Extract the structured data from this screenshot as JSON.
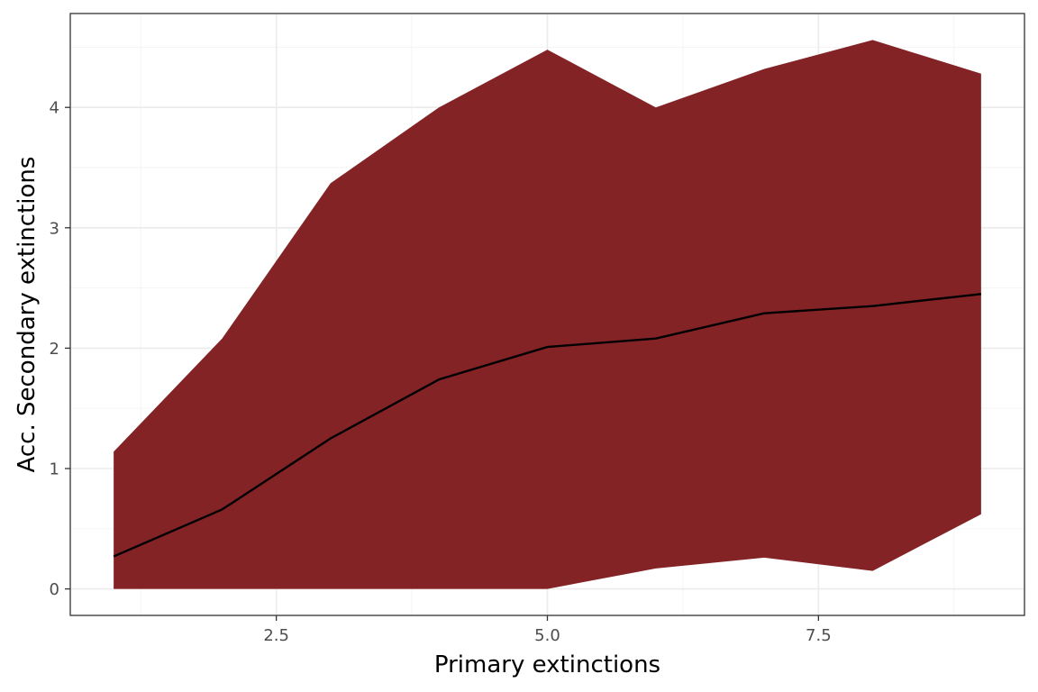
{
  "chart_data": {
    "type": "area",
    "title": "",
    "xlabel": "Primary extinctions",
    "ylabel": "Acc. Secondary extinctions",
    "xlim": [
      0.6,
      9.4
    ],
    "ylim": [
      -0.22,
      4.78
    ],
    "x_ticks": [
      2.5,
      5.0,
      7.5
    ],
    "x_tick_labels": [
      "2.5",
      "5.0",
      "7.5"
    ],
    "y_ticks": [
      0,
      1,
      2,
      3,
      4
    ],
    "y_tick_labels": [
      "0",
      "1",
      "2",
      "3",
      "4"
    ],
    "grid": true,
    "legend": "none",
    "x": [
      1,
      2,
      3,
      4,
      5,
      6,
      7,
      8,
      9
    ],
    "series": [
      {
        "type": "ribbon",
        "lower": [
          0,
          0,
          0,
          0,
          0,
          0.17,
          0.26,
          0.15,
          0.62
        ],
        "upper": [
          1.14,
          2.08,
          3.37,
          4.0,
          4.48,
          4.0,
          4.32,
          4.56,
          4.28
        ],
        "color": "#832325"
      },
      {
        "type": "line",
        "values": [
          0.27,
          0.66,
          1.25,
          1.74,
          2.01,
          2.08,
          2.29,
          2.35,
          2.45
        ],
        "color": "#000000"
      }
    ]
  }
}
